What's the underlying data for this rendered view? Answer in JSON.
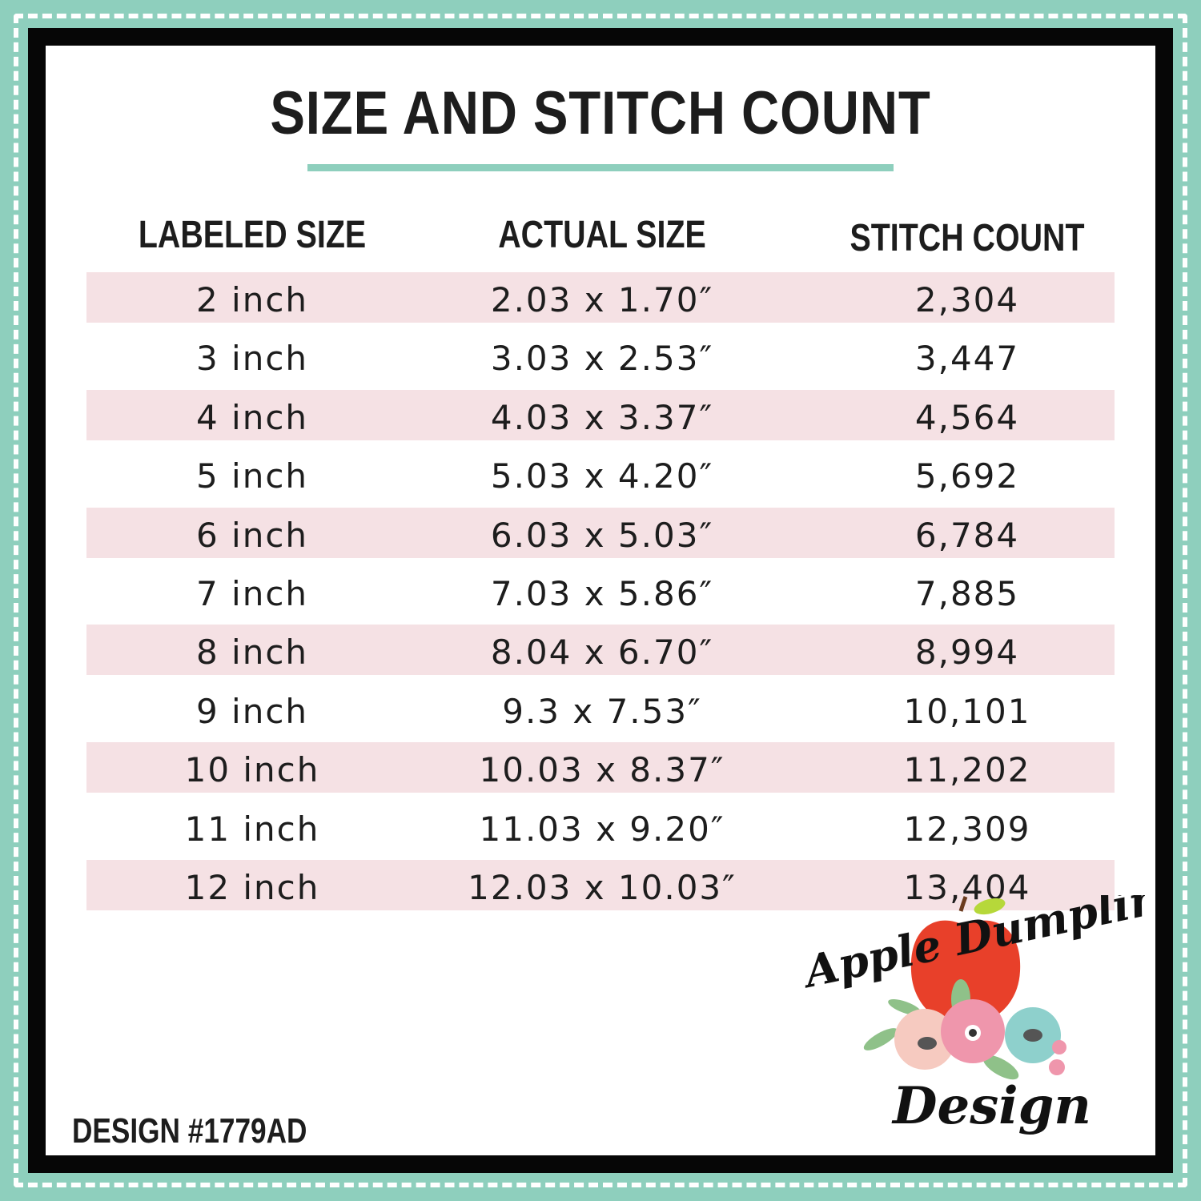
{
  "title": "SIZE AND STITCH COUNT",
  "headers": [
    "LABELED SIZE",
    "ACTUAL SIZE",
    "STITCH COUNT"
  ],
  "rows": [
    [
      "2 inch",
      "2.03 x 1.70″",
      "2,304"
    ],
    [
      "3 inch",
      "3.03 x 2.53″",
      "3,447"
    ],
    [
      "4 inch",
      "4.03 x 3.37″",
      "4,564"
    ],
    [
      "5 inch",
      "5.03 x 4.20″",
      "5,692"
    ],
    [
      "6 inch",
      "6.03 x 5.03″",
      "6,784"
    ],
    [
      "7 inch",
      "7.03 x 5.86″",
      "7,885"
    ],
    [
      "8 inch",
      "8.04 x 6.70″",
      "8,994"
    ],
    [
      "9 inch",
      "9.3 x 7.53″",
      "10,101"
    ],
    [
      "10 inch",
      "10.03 x 8.37″",
      "11,202"
    ],
    [
      "11 inch",
      "11.03 x 9.20″",
      "12,309"
    ],
    [
      "12 inch",
      "12.03 x 10.03″",
      "13,404"
    ]
  ],
  "design_number": "DESIGN #1779AD",
  "logo": {
    "line1": "Apple Dumplin",
    "line2": "Design"
  },
  "colors": {
    "border": "#8ecfbd",
    "frame": "#060606",
    "row_stripe": "#f5e1e4",
    "apple": "#e8402a"
  }
}
